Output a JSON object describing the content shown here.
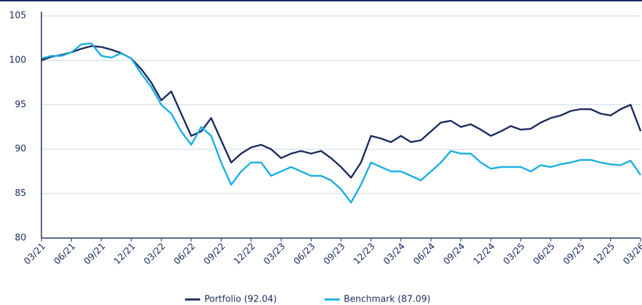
{
  "chart_data": {
    "type": "line",
    "categories": [
      "03/21",
      null,
      null,
      "06/21",
      null,
      null,
      "09/21",
      null,
      null,
      "12/21",
      null,
      null,
      "03/22",
      null,
      null,
      "06/22",
      null,
      null,
      "09/22",
      null,
      null,
      "12/22",
      null,
      null,
      "03/23",
      null,
      null,
      "06/23",
      null,
      null,
      "09/23",
      null,
      null,
      "12/23",
      null,
      null,
      "03/24",
      null,
      null,
      "06/24",
      null,
      null,
      "09/24",
      null,
      null,
      "12/24",
      null,
      null,
      "03/25",
      null,
      null,
      "06/25",
      null,
      null,
      "09/25",
      null,
      null,
      "12/25",
      null,
      null,
      "03/26"
    ],
    "series": [
      {
        "name": "Portfolio (92.04)",
        "color": "#1a2b5e",
        "values": [
          100,
          100.4,
          100.6,
          100.9,
          101.3,
          101.6,
          101.5,
          101.2,
          100.8,
          100.2,
          99,
          97.5,
          95.5,
          96.5,
          94,
          91.5,
          92,
          93.5,
          91,
          88.5,
          89.5,
          90.2,
          90.5,
          90,
          89,
          89.5,
          89.8,
          89.5,
          89.8,
          89,
          88,
          86.8,
          88.5,
          91.5,
          91.2,
          90.8,
          91.5,
          90.8,
          91,
          92,
          93,
          93.2,
          92.5,
          92.8,
          92.2,
          91.5,
          92,
          92.6,
          92.2,
          92.3,
          93,
          93.5,
          93.8,
          94.3,
          94.5,
          94.5,
          94,
          93.8,
          94.5,
          95,
          92.04
        ]
      },
      {
        "name": "Benchmark (87.09)",
        "color": "#18aee2",
        "values": [
          100.2,
          100.5,
          100.5,
          100.9,
          101.8,
          101.9,
          100.5,
          100.3,
          100.8,
          100.2,
          98.5,
          97,
          95,
          94,
          92,
          90.5,
          92.5,
          91.5,
          88.5,
          86,
          87.5,
          88.5,
          88.5,
          87,
          87.5,
          88,
          87.5,
          87,
          87,
          86.5,
          85.5,
          84,
          86,
          88.5,
          88,
          87.5,
          87.5,
          87,
          86.5,
          87.5,
          88.5,
          89.8,
          89.5,
          89.5,
          88.5,
          87.8,
          88,
          88,
          88,
          87.5,
          88.2,
          88,
          88.3,
          88.5,
          88.8,
          88.8,
          88.5,
          88.3,
          88.2,
          88.7,
          87.09
        ]
      }
    ],
    "ylim": [
      80,
      105
    ],
    "yticks": [
      80,
      85,
      90,
      95,
      100,
      105
    ],
    "grid": true
  }
}
